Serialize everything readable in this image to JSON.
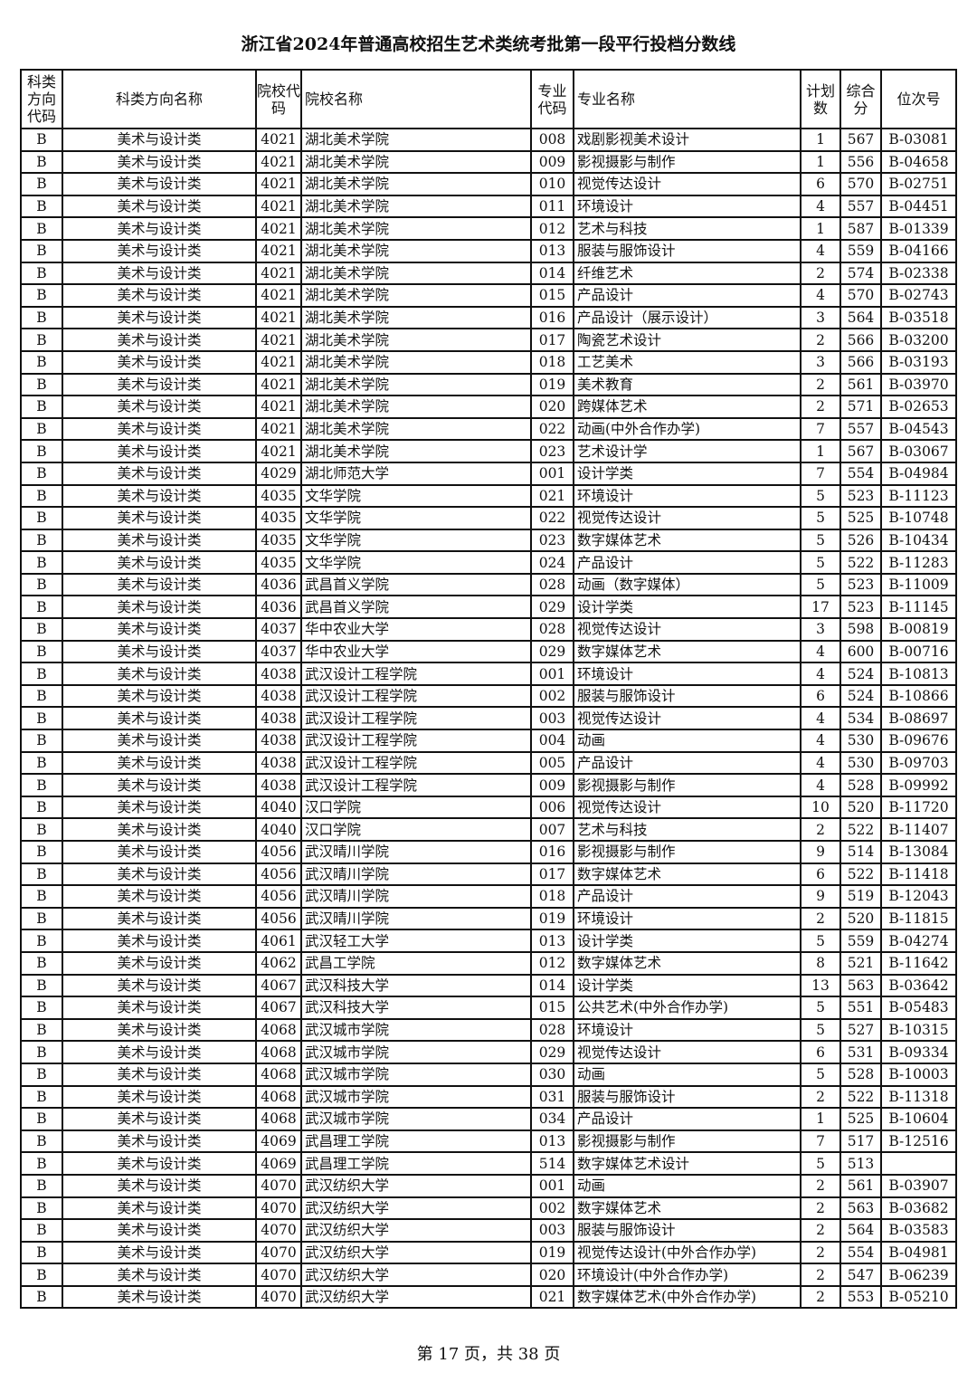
{
  "title": "浙江省2024年普通高校招生艺术类统考批第一段平行投档分数线",
  "headers": [
    "科类方向代码",
    "科类方向名称",
    "院校代码",
    "院校名称",
    "专业代码",
    "专业名称",
    "计划数",
    "综合分",
    "位次号"
  ],
  "rows": [
    [
      "B",
      "美术与设计类",
      "4021",
      "湖北美术学院",
      "008",
      "戏剧影视美术设计",
      "1",
      "567",
      "B-03081"
    ],
    [
      "B",
      "美术与设计类",
      "4021",
      "湖北美术学院",
      "009",
      "影视摄影与制作",
      "1",
      "556",
      "B-04658"
    ],
    [
      "B",
      "美术与设计类",
      "4021",
      "湖北美术学院",
      "010",
      "视觉传达设计",
      "6",
      "570",
      "B-02751"
    ],
    [
      "B",
      "美术与设计类",
      "4021",
      "湖北美术学院",
      "011",
      "环境设计",
      "4",
      "557",
      "B-04451"
    ],
    [
      "B",
      "美术与设计类",
      "4021",
      "湖北美术学院",
      "012",
      "艺术与科技",
      "1",
      "587",
      "B-01339"
    ],
    [
      "B",
      "美术与设计类",
      "4021",
      "湖北美术学院",
      "013",
      "服装与服饰设计",
      "4",
      "559",
      "B-04166"
    ],
    [
      "B",
      "美术与设计类",
      "4021",
      "湖北美术学院",
      "014",
      "纤维艺术",
      "2",
      "574",
      "B-02338"
    ],
    [
      "B",
      "美术与设计类",
      "4021",
      "湖北美术学院",
      "015",
      "产品设计",
      "4",
      "570",
      "B-02743"
    ],
    [
      "B",
      "美术与设计类",
      "4021",
      "湖北美术学院",
      "016",
      "产品设计（展示设计）",
      "3",
      "564",
      "B-03518"
    ],
    [
      "B",
      "美术与设计类",
      "4021",
      "湖北美术学院",
      "017",
      "陶瓷艺术设计",
      "2",
      "566",
      "B-03200"
    ],
    [
      "B",
      "美术与设计类",
      "4021",
      "湖北美术学院",
      "018",
      "工艺美术",
      "3",
      "566",
      "B-03193"
    ],
    [
      "B",
      "美术与设计类",
      "4021",
      "湖北美术学院",
      "019",
      "美术教育",
      "2",
      "561",
      "B-03970"
    ],
    [
      "B",
      "美术与设计类",
      "4021",
      "湖北美术学院",
      "020",
      "跨媒体艺术",
      "2",
      "571",
      "B-02653"
    ],
    [
      "B",
      "美术与设计类",
      "4021",
      "湖北美术学院",
      "022",
      "动画(中外合作办学)",
      "7",
      "557",
      "B-04543"
    ],
    [
      "B",
      "美术与设计类",
      "4021",
      "湖北美术学院",
      "023",
      "艺术设计学",
      "1",
      "567",
      "B-03067"
    ],
    [
      "B",
      "美术与设计类",
      "4029",
      "湖北师范大学",
      "001",
      "设计学类",
      "7",
      "554",
      "B-04984"
    ],
    [
      "B",
      "美术与设计类",
      "4035",
      "文华学院",
      "021",
      "环境设计",
      "5",
      "523",
      "B-11123"
    ],
    [
      "B",
      "美术与设计类",
      "4035",
      "文华学院",
      "022",
      "视觉传达设计",
      "5",
      "525",
      "B-10748"
    ],
    [
      "B",
      "美术与设计类",
      "4035",
      "文华学院",
      "023",
      "数字媒体艺术",
      "5",
      "526",
      "B-10434"
    ],
    [
      "B",
      "美术与设计类",
      "4035",
      "文华学院",
      "024",
      "产品设计",
      "5",
      "522",
      "B-11283"
    ],
    [
      "B",
      "美术与设计类",
      "4036",
      "武昌首义学院",
      "028",
      "动画（数字媒体）",
      "5",
      "523",
      "B-11009"
    ],
    [
      "B",
      "美术与设计类",
      "4036",
      "武昌首义学院",
      "029",
      "设计学类",
      "17",
      "523",
      "B-11145"
    ],
    [
      "B",
      "美术与设计类",
      "4037",
      "华中农业大学",
      "028",
      "视觉传达设计",
      "3",
      "598",
      "B-00819"
    ],
    [
      "B",
      "美术与设计类",
      "4037",
      "华中农业大学",
      "029",
      "数字媒体艺术",
      "4",
      "600",
      "B-00716"
    ],
    [
      "B",
      "美术与设计类",
      "4038",
      "武汉设计工程学院",
      "001",
      "环境设计",
      "4",
      "524",
      "B-10813"
    ],
    [
      "B",
      "美术与设计类",
      "4038",
      "武汉设计工程学院",
      "002",
      "服装与服饰设计",
      "6",
      "524",
      "B-10866"
    ],
    [
      "B",
      "美术与设计类",
      "4038",
      "武汉设计工程学院",
      "003",
      "视觉传达设计",
      "4",
      "534",
      "B-08697"
    ],
    [
      "B",
      "美术与设计类",
      "4038",
      "武汉设计工程学院",
      "004",
      "动画",
      "4",
      "530",
      "B-09676"
    ],
    [
      "B",
      "美术与设计类",
      "4038",
      "武汉设计工程学院",
      "005",
      "产品设计",
      "4",
      "530",
      "B-09703"
    ],
    [
      "B",
      "美术与设计类",
      "4038",
      "武汉设计工程学院",
      "009",
      "影视摄影与制作",
      "4",
      "528",
      "B-09992"
    ],
    [
      "B",
      "美术与设计类",
      "4040",
      "汉口学院",
      "006",
      "视觉传达设计",
      "10",
      "520",
      "B-11720"
    ],
    [
      "B",
      "美术与设计类",
      "4040",
      "汉口学院",
      "007",
      "艺术与科技",
      "2",
      "522",
      "B-11407"
    ],
    [
      "B",
      "美术与设计类",
      "4056",
      "武汉晴川学院",
      "016",
      "影视摄影与制作",
      "9",
      "514",
      "B-13084"
    ],
    [
      "B",
      "美术与设计类",
      "4056",
      "武汉晴川学院",
      "017",
      "数字媒体艺术",
      "6",
      "522",
      "B-11418"
    ],
    [
      "B",
      "美术与设计类",
      "4056",
      "武汉晴川学院",
      "018",
      "产品设计",
      "9",
      "519",
      "B-12043"
    ],
    [
      "B",
      "美术与设计类",
      "4056",
      "武汉晴川学院",
      "019",
      "环境设计",
      "2",
      "520",
      "B-11815"
    ],
    [
      "B",
      "美术与设计类",
      "4061",
      "武汉轻工大学",
      "013",
      "设计学类",
      "5",
      "559",
      "B-04274"
    ],
    [
      "B",
      "美术与设计类",
      "4062",
      "武昌工学院",
      "012",
      "数字媒体艺术",
      "8",
      "521",
      "B-11642"
    ],
    [
      "B",
      "美术与设计类",
      "4067",
      "武汉科技大学",
      "014",
      "设计学类",
      "13",
      "563",
      "B-03642"
    ],
    [
      "B",
      "美术与设计类",
      "4067",
      "武汉科技大学",
      "015",
      "公共艺术(中外合作办学)",
      "5",
      "551",
      "B-05483"
    ],
    [
      "B",
      "美术与设计类",
      "4068",
      "武汉城市学院",
      "028",
      "环境设计",
      "5",
      "527",
      "B-10315"
    ],
    [
      "B",
      "美术与设计类",
      "4068",
      "武汉城市学院",
      "029",
      "视觉传达设计",
      "6",
      "531",
      "B-09334"
    ],
    [
      "B",
      "美术与设计类",
      "4068",
      "武汉城市学院",
      "030",
      "动画",
      "5",
      "528",
      "B-10003"
    ],
    [
      "B",
      "美术与设计类",
      "4068",
      "武汉城市学院",
      "031",
      "服装与服饰设计",
      "2",
      "522",
      "B-11318"
    ],
    [
      "B",
      "美术与设计类",
      "4068",
      "武汉城市学院",
      "034",
      "产品设计",
      "1",
      "525",
      "B-10604"
    ],
    [
      "B",
      "美术与设计类",
      "4069",
      "武昌理工学院",
      "013",
      "影视摄影与制作",
      "7",
      "517",
      "B-12516"
    ],
    [
      "B",
      "美术与设计类",
      "4069",
      "武昌理工学院",
      "514",
      "数字媒体艺术设计",
      "5",
      "513",
      ""
    ],
    [
      "B",
      "美术与设计类",
      "4070",
      "武汉纺织大学",
      "001",
      "动画",
      "2",
      "561",
      "B-03907"
    ],
    [
      "B",
      "美术与设计类",
      "4070",
      "武汉纺织大学",
      "002",
      "数字媒体艺术",
      "2",
      "563",
      "B-03682"
    ],
    [
      "B",
      "美术与设计类",
      "4070",
      "武汉纺织大学",
      "003",
      "服装与服饰设计",
      "2",
      "564",
      "B-03583"
    ],
    [
      "B",
      "美术与设计类",
      "4070",
      "武汉纺织大学",
      "019",
      "视觉传达设计(中外合作办学)",
      "2",
      "554",
      "B-04981"
    ],
    [
      "B",
      "美术与设计类",
      "4070",
      "武汉纺织大学",
      "020",
      "环境设计(中外合作办学)",
      "2",
      "547",
      "B-06239"
    ],
    [
      "B",
      "美术与设计类",
      "4070",
      "武汉纺织大学",
      "021",
      "数字媒体艺术(中外合作办学)",
      "2",
      "553",
      "B-05210"
    ]
  ],
  "footer": "第 17 页，共 38 页"
}
